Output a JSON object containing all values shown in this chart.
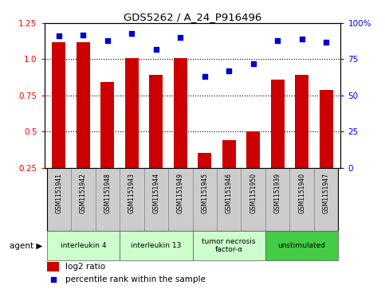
{
  "title": "GDS5262 / A_24_P916496",
  "samples": [
    "GSM1151941",
    "GSM1151942",
    "GSM1151948",
    "GSM1151943",
    "GSM1151944",
    "GSM1151949",
    "GSM1151945",
    "GSM1151946",
    "GSM1151950",
    "GSM1151939",
    "GSM1151940",
    "GSM1151947"
  ],
  "log2_ratio": [
    1.12,
    1.12,
    0.84,
    1.01,
    0.89,
    1.01,
    0.35,
    0.44,
    0.5,
    0.86,
    0.89,
    0.79
  ],
  "percentile_rank": [
    91,
    92,
    88,
    93,
    82,
    90,
    63,
    67,
    72,
    88,
    89,
    87
  ],
  "bar_color": "#cc0000",
  "dot_color": "#0000cc",
  "ylim_left": [
    0.25,
    1.25
  ],
  "ylim_right": [
    0,
    100
  ],
  "yticks_left": [
    0.25,
    0.5,
    0.75,
    1.0,
    1.25
  ],
  "yticks_right": [
    0,
    25,
    50,
    75,
    100
  ],
  "ytick_labels_right": [
    "0",
    "25",
    "50",
    "75",
    "100%"
  ],
  "agents": [
    {
      "label": "interleukin 4",
      "start": 0,
      "end": 2,
      "color": "#ccffcc"
    },
    {
      "label": "interleukin 13",
      "start": 3,
      "end": 5,
      "color": "#ccffcc"
    },
    {
      "label": "tumor necrosis\nfactor-α",
      "start": 6,
      "end": 8,
      "color": "#ccffcc"
    },
    {
      "label": "unstimulated",
      "start": 9,
      "end": 11,
      "color": "#44cc44"
    }
  ],
  "legend_bar_label": "log2 ratio",
  "legend_dot_label": "percentile rank within the sample",
  "agent_label": "agent",
  "background_color": "#ffffff",
  "plot_bg_color": "#ffffff",
  "sample_box_color": "#cccccc",
  "bar_bottom": 0.25
}
